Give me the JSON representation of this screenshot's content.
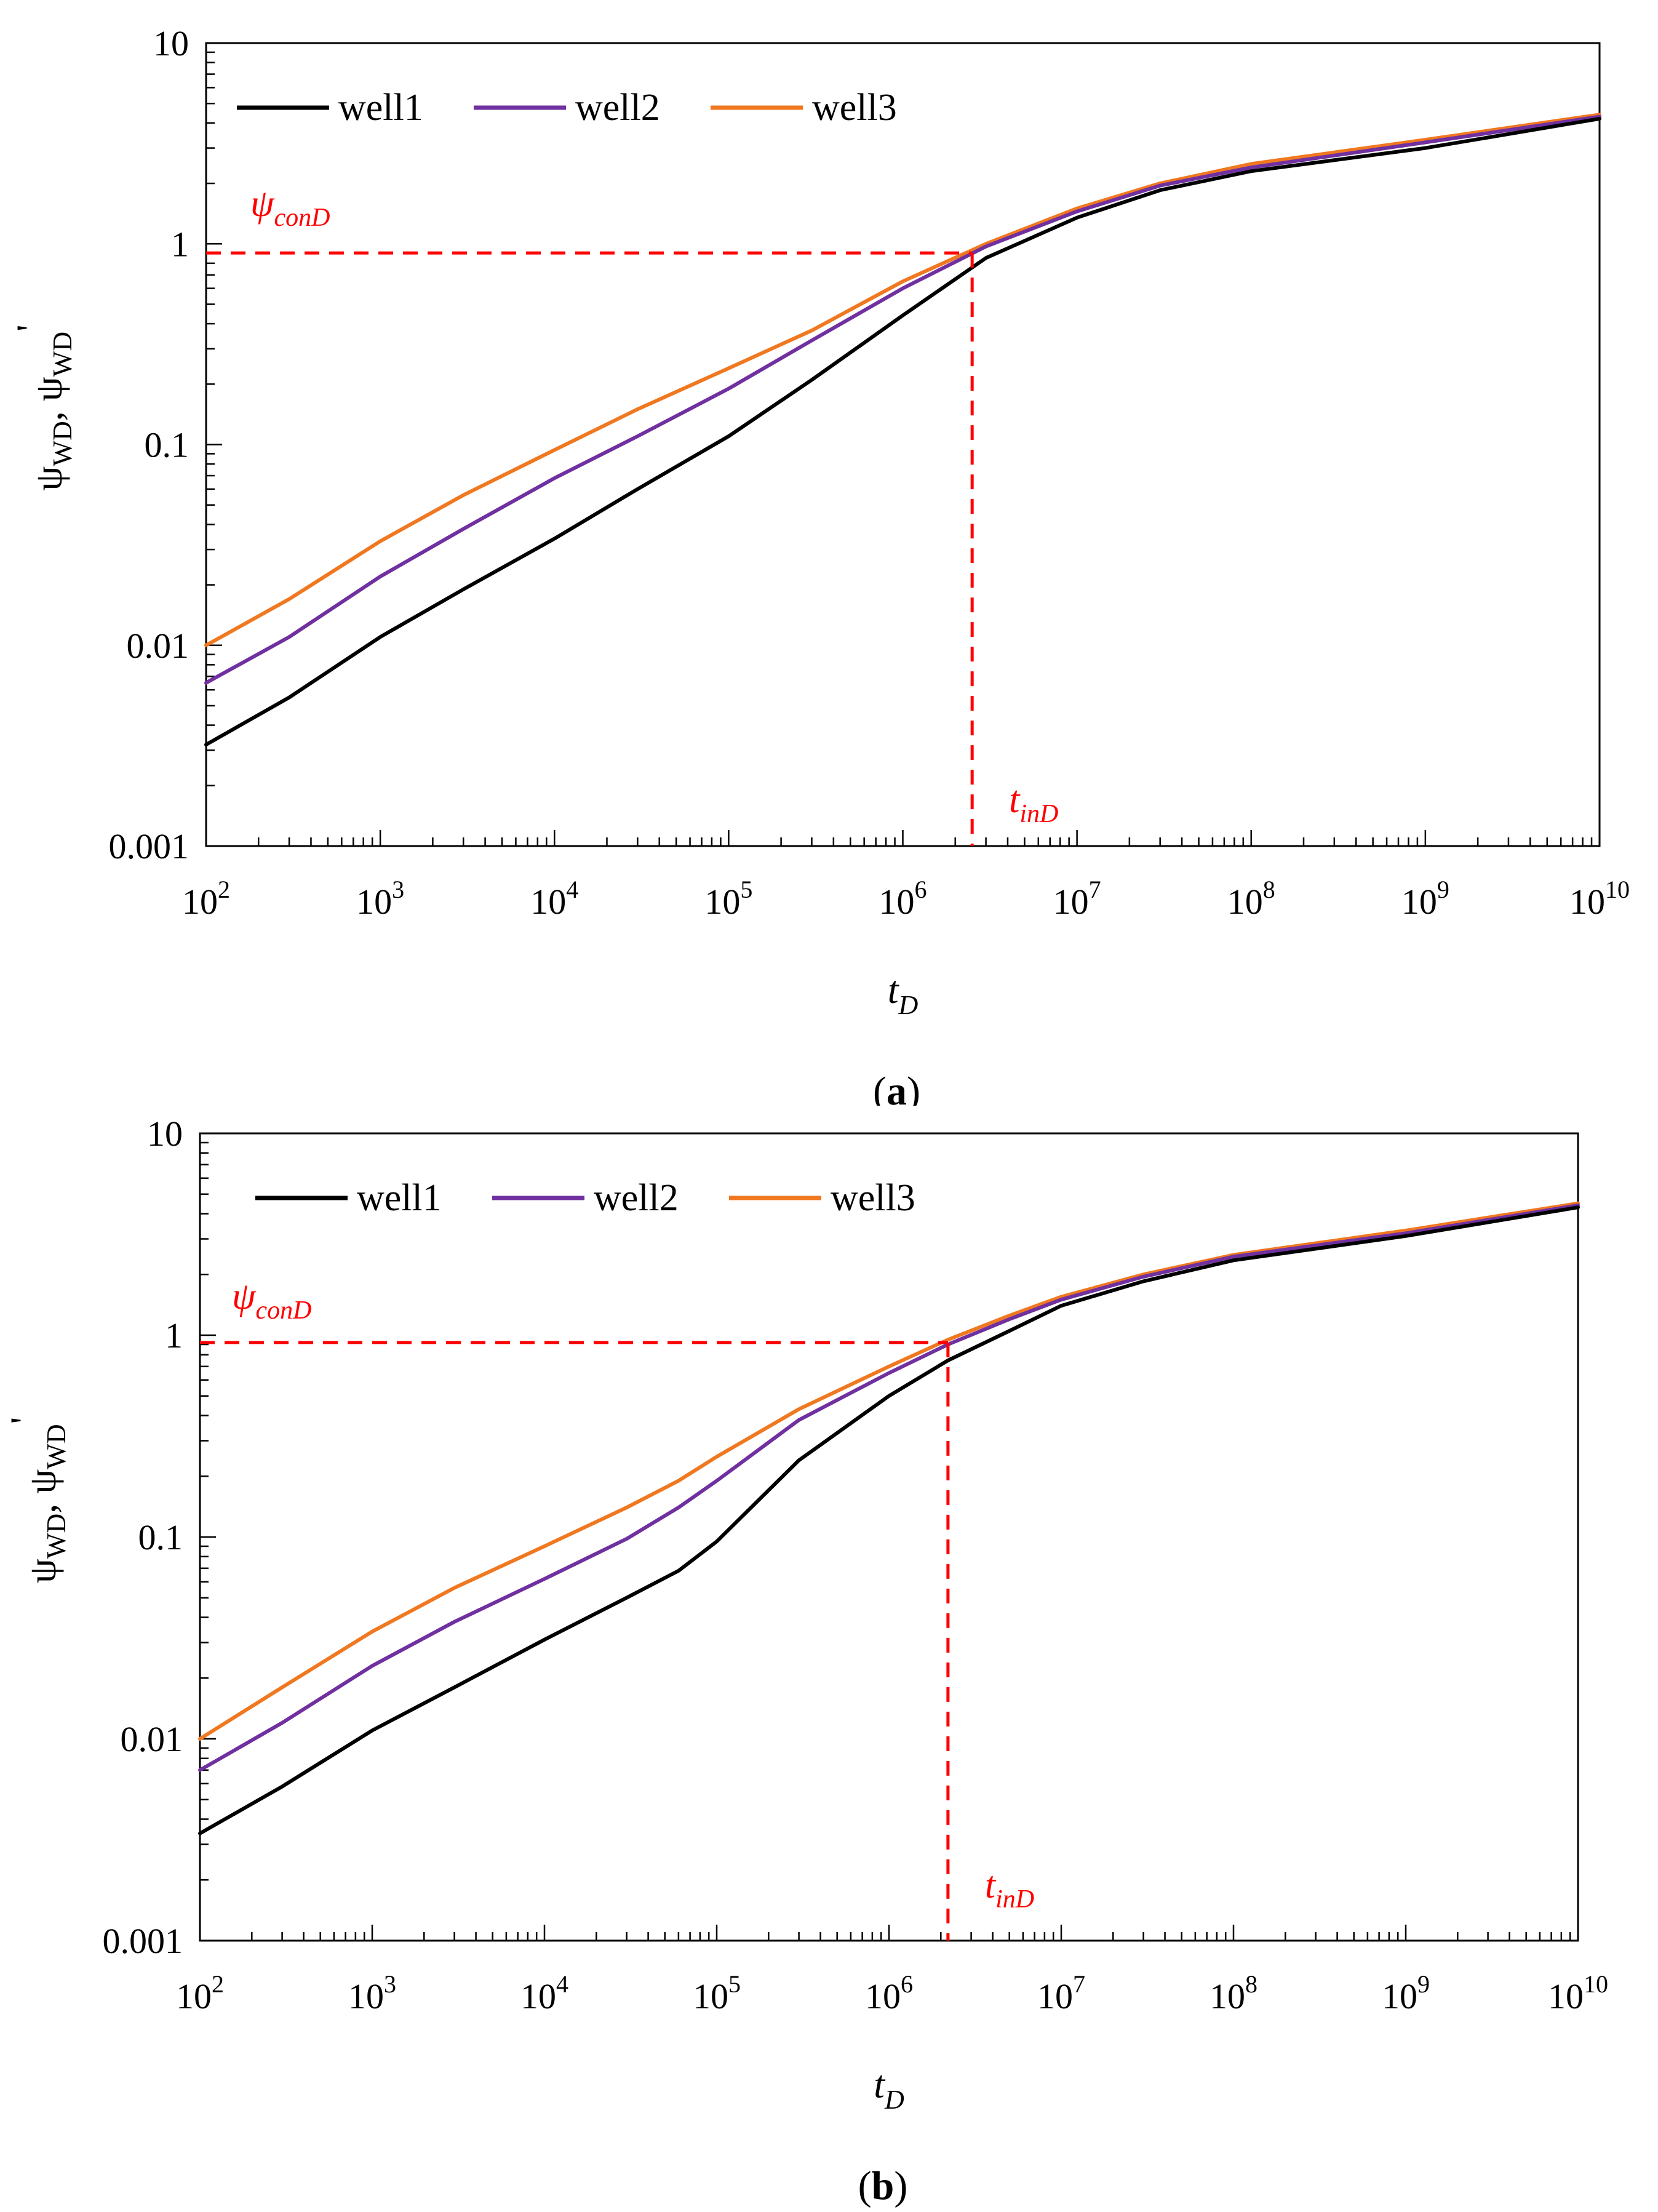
{
  "chart_data": [
    {
      "type": "line",
      "panel_label": "a",
      "xscale": "log",
      "yscale": "log",
      "xlim": [
        100,
        10000000000
      ],
      "ylim": [
        0.001,
        10
      ],
      "x_ticks": [
        {
          "base": "10",
          "exp": "2"
        },
        {
          "base": "10",
          "exp": "3"
        },
        {
          "base": "10",
          "exp": "4"
        },
        {
          "base": "10",
          "exp": "5"
        },
        {
          "base": "10",
          "exp": "6"
        },
        {
          "base": "10",
          "exp": "7"
        },
        {
          "base": "10",
          "exp": "8"
        },
        {
          "base": "10",
          "exp": "9"
        },
        {
          "base": "10",
          "exp": "10"
        }
      ],
      "y_ticks": [
        "0.001",
        "0.01",
        "0.1",
        "1",
        "10"
      ],
      "xlabel": {
        "main": "t",
        "sub": "D"
      },
      "ylabel": {
        "text": "ψ",
        "sub": "WD",
        "sep": ", ψ",
        "sub2": "WD",
        "prime": "'"
      },
      "legend": [
        "well1",
        "well2",
        "well3"
      ],
      "series": [
        {
          "name": "well1",
          "color": "#000000",
          "x": [
            100,
            300,
            1000,
            3000,
            10000,
            30000,
            100000,
            300000,
            1000000,
            3000000,
            10000000,
            30000000,
            100000000,
            1000000000,
            10000000000
          ],
          "y": [
            0.0032,
            0.0055,
            0.011,
            0.019,
            0.034,
            0.06,
            0.11,
            0.21,
            0.44,
            0.85,
            1.35,
            1.85,
            2.3,
            3.0,
            4.2
          ]
        },
        {
          "name": "well2",
          "color": "#7030A0",
          "x": [
            100,
            300,
            1000,
            3000,
            10000,
            30000,
            100000,
            300000,
            1000000,
            3000000,
            10000000,
            30000000,
            100000000,
            1000000000,
            10000000000
          ],
          "y": [
            0.0065,
            0.011,
            0.022,
            0.038,
            0.068,
            0.11,
            0.19,
            0.33,
            0.6,
            0.97,
            1.45,
            1.95,
            2.4,
            3.2,
            4.3
          ]
        },
        {
          "name": "well3",
          "color": "#F07820",
          "x": [
            100,
            300,
            1000,
            3000,
            10000,
            30000,
            100000,
            300000,
            1000000,
            3000000,
            10000000,
            30000000,
            100000000,
            1000000000,
            10000000000
          ],
          "y": [
            0.01,
            0.017,
            0.033,
            0.056,
            0.094,
            0.15,
            0.24,
            0.37,
            0.65,
            1.0,
            1.5,
            2.0,
            2.5,
            3.3,
            4.4
          ]
        }
      ],
      "annotations": [
        {
          "id": "psi-con",
          "base": "ψ",
          "sub": "conD",
          "value": 0.9,
          "color": "#FF0000"
        },
        {
          "id": "t-in",
          "base": "t",
          "sub": "inD",
          "value": 2500000,
          "color": "#FF0000"
        }
      ]
    },
    {
      "type": "line",
      "panel_label": "b",
      "xscale": "log",
      "yscale": "log",
      "xlim": [
        100,
        10000000000
      ],
      "ylim": [
        0.001,
        10
      ],
      "x_ticks": [
        {
          "base": "10",
          "exp": "2"
        },
        {
          "base": "10",
          "exp": "3"
        },
        {
          "base": "10",
          "exp": "4"
        },
        {
          "base": "10",
          "exp": "5"
        },
        {
          "base": "10",
          "exp": "6"
        },
        {
          "base": "10",
          "exp": "7"
        },
        {
          "base": "10",
          "exp": "8"
        },
        {
          "base": "10",
          "exp": "9"
        },
        {
          "base": "10",
          "exp": "10"
        }
      ],
      "y_ticks": [
        "0.001",
        "0.01",
        "0.1",
        "1",
        "10"
      ],
      "xlabel": {
        "main": "t",
        "sub": "D"
      },
      "ylabel": {
        "text": "ψ",
        "sub": "WD",
        "sep": ", ψ",
        "sub2": "WD",
        "prime": "'"
      },
      "legend": [
        "well1",
        "well2",
        "well3"
      ],
      "series": [
        {
          "name": "well1",
          "color": "#000000",
          "x": [
            100,
            300,
            1000,
            3000,
            10000,
            30000,
            60000,
            100000,
            300000,
            1000000,
            2200000,
            5000000,
            10000000,
            30000000,
            100000000,
            1000000000,
            10000000000
          ],
          "y": [
            0.0034,
            0.0058,
            0.011,
            0.018,
            0.031,
            0.05,
            0.068,
            0.095,
            0.24,
            0.5,
            0.75,
            1.05,
            1.4,
            1.85,
            2.35,
            3.1,
            4.3
          ]
        },
        {
          "name": "well2",
          "color": "#7030A0",
          "x": [
            100,
            300,
            1000,
            3000,
            10000,
            30000,
            60000,
            100000,
            300000,
            1000000,
            2200000,
            5000000,
            10000000,
            30000000,
            100000000,
            1000000000,
            10000000000
          ],
          "y": [
            0.007,
            0.012,
            0.023,
            0.038,
            0.062,
            0.098,
            0.14,
            0.19,
            0.38,
            0.65,
            0.9,
            1.2,
            1.5,
            1.95,
            2.45,
            3.2,
            4.4
          ]
        },
        {
          "name": "well3",
          "color": "#F07820",
          "x": [
            100,
            300,
            1000,
            3000,
            10000,
            30000,
            60000,
            100000,
            300000,
            1000000,
            2200000,
            5000000,
            10000000,
            30000000,
            100000000,
            1000000000,
            10000000000
          ],
          "y": [
            0.01,
            0.018,
            0.034,
            0.056,
            0.09,
            0.14,
            0.19,
            0.25,
            0.43,
            0.7,
            0.95,
            1.25,
            1.55,
            2.0,
            2.5,
            3.3,
            4.5
          ]
        }
      ],
      "annotations": [
        {
          "id": "psi-con",
          "base": "ψ",
          "sub": "conD",
          "value": 0.92,
          "color": "#FF0000"
        },
        {
          "id": "t-in",
          "base": "t",
          "sub": "inD",
          "value": 2200000,
          "color": "#FF0000"
        }
      ]
    }
  ]
}
